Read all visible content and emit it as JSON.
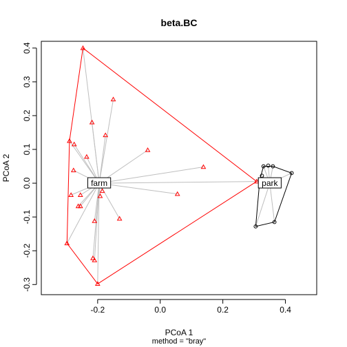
{
  "chart_data": {
    "type": "scatter",
    "title": "beta.BC",
    "xlabel": "PCoA 1",
    "ylabel": "PCoA 2",
    "subtitle": "method = \"bray\"",
    "xlim": [
      -0.38,
      0.5
    ],
    "ylim": [
      -0.33,
      0.42
    ],
    "xticks": [
      -0.2,
      0.0,
      0.2,
      0.4
    ],
    "xtick_labels": [
      "-0.2",
      "0.0",
      "0.2",
      "0.4"
    ],
    "yticks": [
      -0.3,
      -0.2,
      -0.1,
      0.0,
      0.1,
      0.2,
      0.3,
      0.4
    ],
    "ytick_labels": [
      "-0.3",
      "-0.2",
      "-0.1",
      "0.0",
      "0.1",
      "0.2",
      "0.3",
      "0.4"
    ],
    "grid": false,
    "colors": {
      "farm": "#ff0000",
      "park": "#000000",
      "spider": "#bebebe"
    },
    "groups": [
      {
        "name": "farm",
        "marker": "triangle",
        "centroid": {
          "x": -0.195,
          "y": 0.0
        },
        "points": [
          {
            "x": -0.247,
            "y": 0.4
          },
          {
            "x": -0.15,
            "y": 0.248
          },
          {
            "x": -0.218,
            "y": 0.18
          },
          {
            "x": -0.175,
            "y": 0.142
          },
          {
            "x": -0.29,
            "y": 0.125
          },
          {
            "x": -0.275,
            "y": 0.115
          },
          {
            "x": -0.04,
            "y": 0.098
          },
          {
            "x": -0.235,
            "y": 0.078
          },
          {
            "x": -0.277,
            "y": 0.038
          },
          {
            "x": 0.138,
            "y": 0.048
          },
          {
            "x": -0.185,
            "y": -0.023
          },
          {
            "x": -0.285,
            "y": -0.035
          },
          {
            "x": -0.255,
            "y": -0.035
          },
          {
            "x": -0.192,
            "y": -0.038
          },
          {
            "x": 0.055,
            "y": -0.032
          },
          {
            "x": -0.262,
            "y": -0.068
          },
          {
            "x": -0.255,
            "y": -0.068
          },
          {
            "x": -0.13,
            "y": -0.105
          },
          {
            "x": -0.21,
            "y": -0.112
          },
          {
            "x": -0.298,
            "y": -0.178
          },
          {
            "x": -0.215,
            "y": -0.222
          },
          {
            "x": -0.21,
            "y": -0.228
          },
          {
            "x": -0.2,
            "y": -0.298
          },
          {
            "x": 0.308,
            "y": 0.005
          }
        ],
        "hull": [
          {
            "x": -0.247,
            "y": 0.4
          },
          {
            "x": 0.308,
            "y": 0.005
          },
          {
            "x": -0.2,
            "y": -0.298
          },
          {
            "x": -0.298,
            "y": -0.178
          },
          {
            "x": -0.29,
            "y": 0.125
          }
        ]
      },
      {
        "name": "park",
        "marker": "circle",
        "centroid": {
          "x": 0.35,
          "y": 0.0
        },
        "points": [
          {
            "x": 0.33,
            "y": 0.05
          },
          {
            "x": 0.345,
            "y": 0.052
          },
          {
            "x": 0.36,
            "y": 0.05
          },
          {
            "x": 0.42,
            "y": 0.03
          },
          {
            "x": 0.325,
            "y": 0.022
          },
          {
            "x": 0.318,
            "y": 0.01
          },
          {
            "x": 0.335,
            "y": 0.008
          },
          {
            "x": 0.365,
            "y": -0.115
          },
          {
            "x": 0.305,
            "y": -0.128
          }
        ],
        "hull": [
          {
            "x": 0.33,
            "y": 0.05
          },
          {
            "x": 0.36,
            "y": 0.05
          },
          {
            "x": 0.42,
            "y": 0.03
          },
          {
            "x": 0.365,
            "y": -0.115
          },
          {
            "x": 0.305,
            "y": -0.128
          },
          {
            "x": 0.318,
            "y": 0.01
          }
        ]
      }
    ]
  }
}
